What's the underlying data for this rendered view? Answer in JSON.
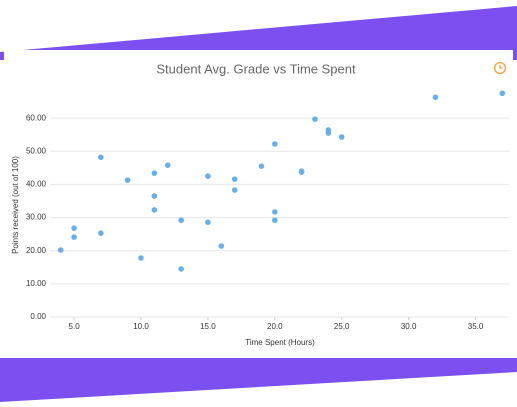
{
  "chart_data": {
    "type": "scatter",
    "title": "Student Avg. Grade vs Time Spent",
    "x_label": "Time Spent (Hours)",
    "y_label": "Points received (out of 100)",
    "color": "#6aaee8",
    "grid": true,
    "xlim": [
      3.2,
      37.5
    ],
    "ylim": [
      0,
      70
    ],
    "xticks": [
      {
        "value": 5,
        "label": "5.0"
      },
      {
        "value": 10,
        "label": "10.0"
      },
      {
        "value": 15,
        "label": "15.0"
      },
      {
        "value": 20,
        "label": "20.0"
      },
      {
        "value": 25,
        "label": "25.0"
      },
      {
        "value": 30,
        "label": "30.0"
      },
      {
        "value": 35,
        "label": "35.0"
      }
    ],
    "yticks": [
      {
        "value": 0,
        "label": "0.00"
      },
      {
        "value": 10,
        "label": "10.00"
      },
      {
        "value": 20,
        "label": "20.00"
      },
      {
        "value": 30,
        "label": "30.00"
      },
      {
        "value": 40,
        "label": "40.00"
      },
      {
        "value": 50,
        "label": "50.00"
      },
      {
        "value": 60,
        "label": "60.00"
      }
    ],
    "x": [
      4,
      5,
      5,
      7,
      7,
      9,
      10,
      11,
      11,
      11,
      12,
      13,
      13,
      15,
      15,
      16,
      17,
      17,
      19,
      20,
      20,
      20,
      22,
      22,
      23,
      24,
      24,
      25,
      32,
      37
    ],
    "values": [
      20.2,
      26.8,
      24.1,
      48.2,
      25.3,
      41.3,
      17.8,
      43.4,
      36.5,
      32.3,
      45.8,
      29.2,
      14.5,
      42.5,
      28.6,
      21.4,
      41.6,
      38.3,
      45.5,
      52.2,
      31.7,
      29.2,
      44,
      43.7,
      59.7,
      56.4,
      55.5,
      54.3,
      66.3,
      67.5
    ]
  }
}
